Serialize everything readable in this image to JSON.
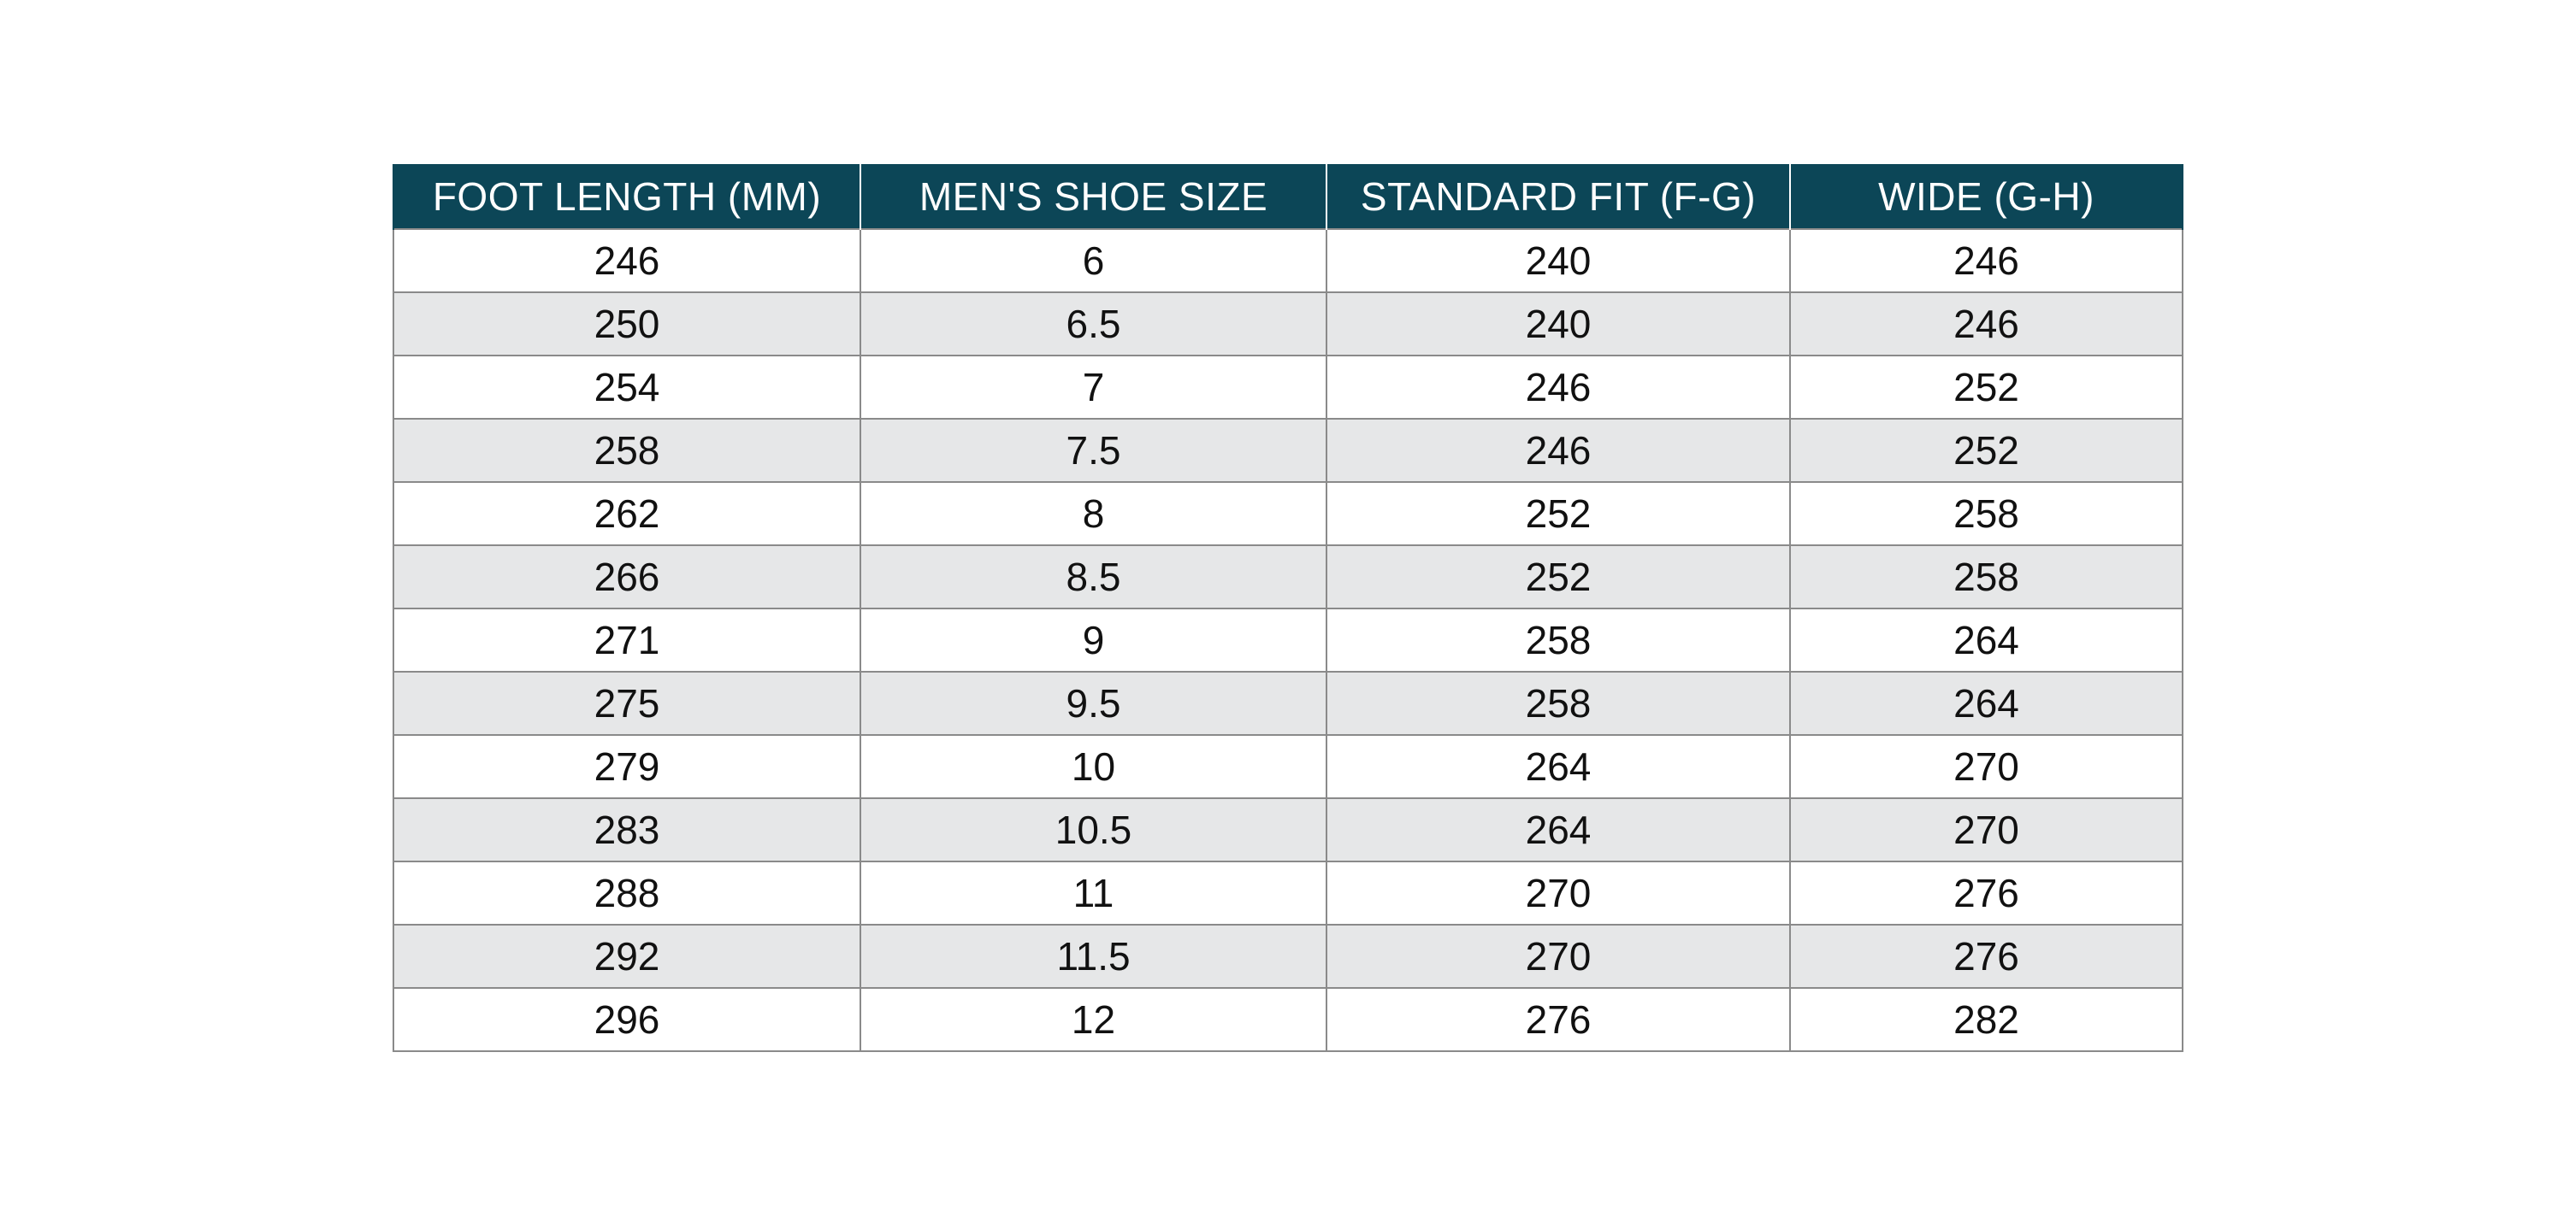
{
  "table": {
    "header": [
      "FOOT LENGTH (MM)",
      "MEN'S SHOE SIZE",
      "STANDARD FIT (F-G)",
      "WIDE (G-H)"
    ],
    "rows": [
      [
        "246",
        "6",
        "240",
        "246"
      ],
      [
        "250",
        "6.5",
        "240",
        "246"
      ],
      [
        "254",
        "7",
        "246",
        "252"
      ],
      [
        "258",
        "7.5",
        "246",
        "252"
      ],
      [
        "262",
        "8",
        "252",
        "258"
      ],
      [
        "266",
        "8.5",
        "252",
        "258"
      ],
      [
        "271",
        "9",
        "258",
        "264"
      ],
      [
        "275",
        "9.5",
        "258",
        "264"
      ],
      [
        "279",
        "10",
        "264",
        "270"
      ],
      [
        "283",
        "10.5",
        "264",
        "270"
      ],
      [
        "288",
        "11",
        "270",
        "276"
      ],
      [
        "292",
        "11.5",
        "270",
        "276"
      ],
      [
        "296",
        "12",
        "276",
        "282"
      ]
    ]
  }
}
